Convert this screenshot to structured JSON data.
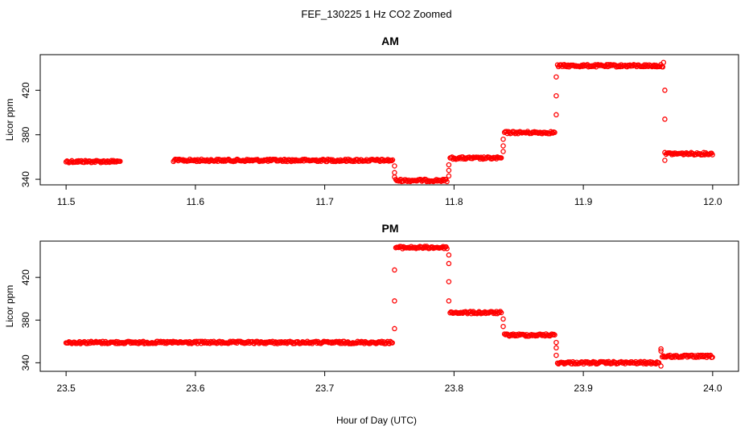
{
  "figure": {
    "title": "FEF_130225  1 Hz CO2 Zoomed",
    "xlabel": "Hour of Day (UTC)"
  },
  "chart_data": [
    {
      "type": "scatter",
      "title": "AM",
      "ylabel": "Licor ppm",
      "xlabel": "",
      "xlim": [
        11.48,
        12.02
      ],
      "ylim": [
        335,
        452
      ],
      "xticks": [
        11.5,
        11.6,
        11.7,
        11.8,
        11.9,
        12.0
      ],
      "xtick_labels": [
        "11.5",
        "11.6",
        "11.7",
        "11.8",
        "11.9",
        "12.0"
      ],
      "yticks": [
        340,
        380,
        420
      ],
      "ytick_labels": [
        "340",
        "380",
        "420"
      ],
      "grid": false,
      "marker": "open-circle",
      "color": "#ff0000",
      "segments": [
        {
          "x_start": 11.5,
          "x_end": 11.542,
          "y": 356
        },
        {
          "x_start": 11.583,
          "x_end": 11.753,
          "y": 357
        },
        {
          "x_start": 11.755,
          "x_end": 11.795,
          "y": 339
        },
        {
          "x_start": 11.797,
          "x_end": 11.837,
          "y": 359
        },
        {
          "x_start": 11.839,
          "x_end": 11.878,
          "y": 382
        },
        {
          "x_start": 11.88,
          "x_end": 11.962,
          "y": 442
        },
        {
          "x_start": 11.964,
          "x_end": 12.0,
          "y": 363
        }
      ],
      "transition_points": [
        {
          "x": 11.754,
          "y": 352
        },
        {
          "x": 11.754,
          "y": 346
        },
        {
          "x": 11.754,
          "y": 342
        },
        {
          "x": 11.796,
          "y": 343
        },
        {
          "x": 11.796,
          "y": 348
        },
        {
          "x": 11.796,
          "y": 353
        },
        {
          "x": 11.838,
          "y": 365
        },
        {
          "x": 11.838,
          "y": 370
        },
        {
          "x": 11.838,
          "y": 376
        },
        {
          "x": 11.879,
          "y": 398
        },
        {
          "x": 11.879,
          "y": 415
        },
        {
          "x": 11.879,
          "y": 432
        },
        {
          "x": 11.963,
          "y": 420
        },
        {
          "x": 11.963,
          "y": 394
        },
        {
          "x": 11.963,
          "y": 364
        },
        {
          "x": 11.963,
          "y": 357
        },
        {
          "x": 11.962,
          "y": 445
        }
      ]
    },
    {
      "type": "scatter",
      "title": "PM",
      "ylabel": "Licor ppm",
      "xlabel": "Hour of Day (UTC)",
      "xlim": [
        23.48,
        24.02
      ],
      "ylim": [
        332,
        454
      ],
      "xticks": [
        23.5,
        23.6,
        23.7,
        23.8,
        23.9,
        24.0
      ],
      "xtick_labels": [
        "23.5",
        "23.6",
        "23.7",
        "23.8",
        "23.9",
        "24.0"
      ],
      "yticks": [
        340,
        380,
        420
      ],
      "ytick_labels": [
        "340",
        "380",
        "420"
      ],
      "grid": false,
      "marker": "open-circle",
      "color": "#ff0000",
      "segments": [
        {
          "x_start": 23.5,
          "x_end": 23.753,
          "y": 359
        },
        {
          "x_start": 23.755,
          "x_end": 23.795,
          "y": 448
        },
        {
          "x_start": 23.797,
          "x_end": 23.837,
          "y": 387
        },
        {
          "x_start": 23.839,
          "x_end": 23.878,
          "y": 366
        },
        {
          "x_start": 23.88,
          "x_end": 23.959,
          "y": 340
        },
        {
          "x_start": 23.961,
          "x_end": 24.0,
          "y": 346
        }
      ],
      "transition_points": [
        {
          "x": 23.754,
          "y": 372
        },
        {
          "x": 23.754,
          "y": 398
        },
        {
          "x": 23.754,
          "y": 427
        },
        {
          "x": 23.796,
          "y": 441
        },
        {
          "x": 23.796,
          "y": 433
        },
        {
          "x": 23.796,
          "y": 416
        },
        {
          "x": 23.796,
          "y": 398
        },
        {
          "x": 23.838,
          "y": 381
        },
        {
          "x": 23.838,
          "y": 374
        },
        {
          "x": 23.879,
          "y": 359
        },
        {
          "x": 23.879,
          "y": 354
        },
        {
          "x": 23.879,
          "y": 347
        },
        {
          "x": 23.96,
          "y": 353
        },
        {
          "x": 23.96,
          "y": 351
        },
        {
          "x": 23.96,
          "y": 337
        }
      ]
    }
  ]
}
